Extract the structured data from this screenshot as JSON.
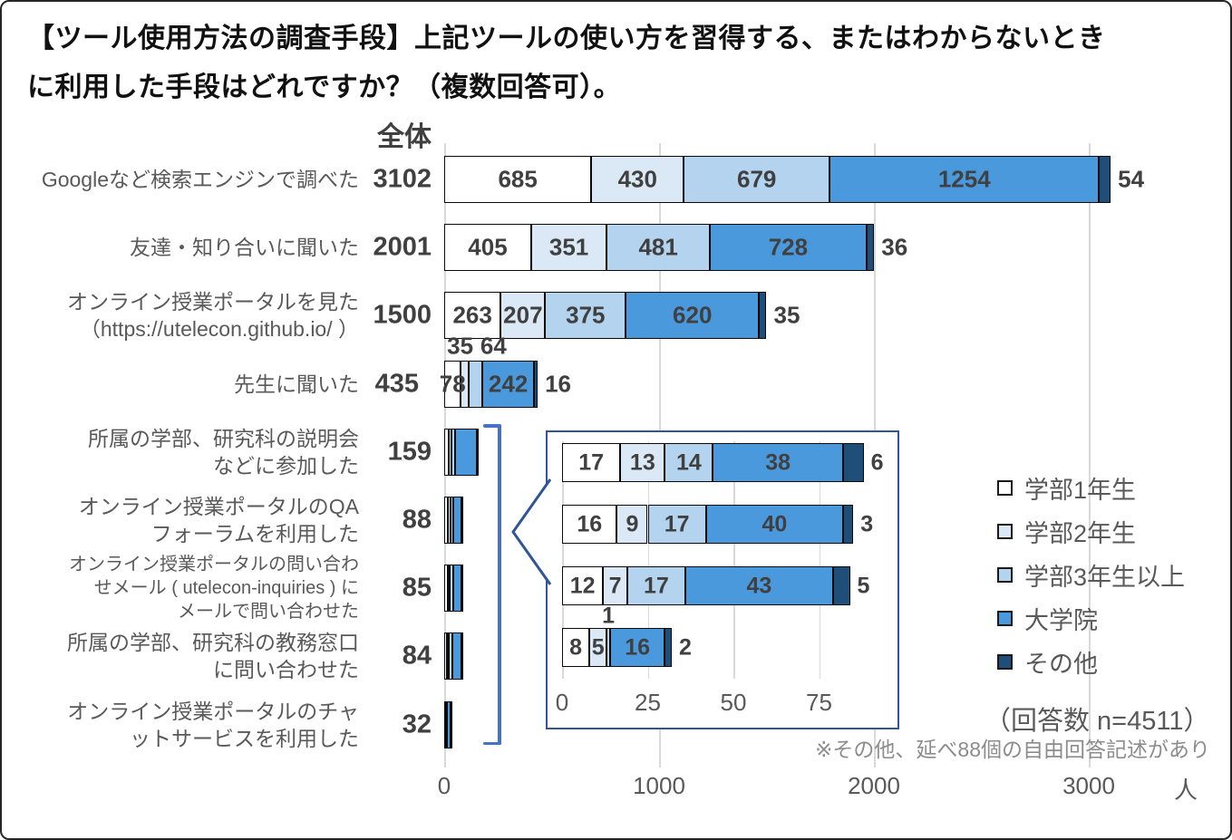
{
  "title_line1": "【ツール使用方法の調査手段】上記ツールの使い方を習得する、またはわからないとき",
  "title_line2": "に利用した手段はどれですか？（複数回答可）。",
  "header": {
    "total_label": "全体"
  },
  "legend": [
    {
      "label": "学部1年生",
      "color": "#ffffff"
    },
    {
      "label": "学部2年生",
      "color": "#dbe9f7"
    },
    {
      "label": "学部3年生以上",
      "color": "#b3d3ee"
    },
    {
      "label": "大学院",
      "color": "#4a99dd"
    },
    {
      "label": "その他",
      "color": "#1f4e79"
    }
  ],
  "respondents_note": "（回答数 n=4511）",
  "footnote": "※その他、延べ88個の自由回答記述があり",
  "axis": {
    "ticks": [
      0,
      1000,
      2000,
      3000
    ],
    "unit": "人"
  },
  "inset_axis": {
    "ticks": [
      0,
      25,
      50,
      75
    ]
  },
  "chart_data": {
    "type": "bar",
    "stacked": true,
    "orientation": "horizontal",
    "xlim": [
      0,
      3000
    ],
    "grid": true,
    "legend_position": "right",
    "series": [
      "学部1年生",
      "学部2年生",
      "学部3年生以上",
      "大学院",
      "その他"
    ],
    "series_colors": [
      "#ffffff",
      "#dbe9f7",
      "#b3d3ee",
      "#4a99dd",
      "#1f4e79"
    ],
    "rows": [
      {
        "label": "Googleなど検索エンジンで調べた",
        "total": 3102,
        "values": [
          685,
          430,
          679,
          1254,
          54
        ],
        "label_positions": [
          "in",
          "in",
          "in",
          "in",
          "right"
        ]
      },
      {
        "label": "友達・知り合いに聞いた",
        "total": 2001,
        "values": [
          405,
          351,
          481,
          728,
          36
        ],
        "label_positions": [
          "in",
          "in",
          "in",
          "in",
          "right"
        ]
      },
      {
        "label": "オンライン授業ポータルを見た\n（https://utelecon.github.io/ ）",
        "total": 1500,
        "values": [
          263,
          207,
          375,
          620,
          35
        ],
        "label_positions": [
          "in",
          "in",
          "in",
          "in",
          "right"
        ]
      },
      {
        "label": "先生に聞いた",
        "total": 435,
        "values": [
          78,
          35,
          64,
          242,
          16
        ],
        "label_positions": [
          "in",
          "above",
          "above",
          "in",
          "right"
        ],
        "above_dx": [
          -5,
          20
        ],
        "total_dx": -14
      },
      {
        "label": "所属の学部、研究科の説明会\nなどに参加した",
        "total": 159,
        "values": [
          21,
          12,
          18,
          100,
          8
        ],
        "values_estimated": true,
        "label_positions": null
      },
      {
        "label": "オンライン授業ポータルのQA\nフォーラムを利用した",
        "total": 88,
        "values": [
          17,
          13,
          14,
          38,
          6
        ],
        "label_positions": null,
        "in_inset": true,
        "inset_label_positions": [
          "in",
          "in",
          "in",
          "in",
          "right"
        ]
      },
      {
        "label": "オンライン授業ポータルの問い合わ\nせメール ( utelecon-inquiries ) に\nメールで問い合わせた",
        "total": 85,
        "values": [
          16,
          9,
          17,
          40,
          3
        ],
        "label_positions": null,
        "in_inset": true,
        "small_label": true,
        "inset_label_positions": [
          "in",
          "in",
          "in",
          "in",
          "right"
        ]
      },
      {
        "label": "所属の学部、研究科の教務窓口\nに問い合わせた",
        "total": 84,
        "values": [
          12,
          7,
          17,
          43,
          5
        ],
        "label_positions": null,
        "in_inset": true,
        "inset_label_positions": [
          "in",
          "in",
          "in",
          "in",
          "right"
        ]
      },
      {
        "label": "オンライン授業ポータルのチャ\nットサービスを利用した",
        "total": 32,
        "values": [
          8,
          5,
          1,
          16,
          2
        ],
        "label_positions": null,
        "in_inset": true,
        "inset_label_positions": [
          "in",
          "in",
          "above",
          "in",
          "right"
        ]
      }
    ]
  }
}
